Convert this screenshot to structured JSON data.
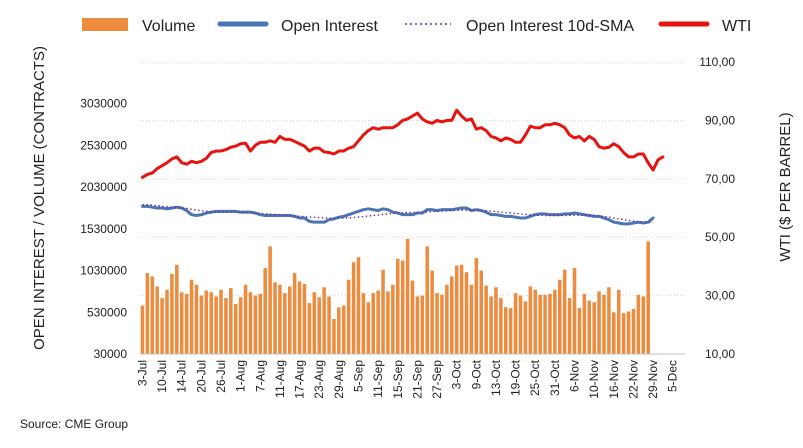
{
  "chart_data": {
    "type": "bar",
    "source": "Source: CME Group",
    "ylabel_left": "OPEN INTEREST / VOLUME (CONTRACTS)",
    "ylabel_right": "WTI ($ PER BARREL)",
    "y_left_range": [
      30000,
      3530000
    ],
    "y_right_range": [
      10,
      110
    ],
    "y_left_ticks": [
      30000,
      530000,
      1030000,
      1530000,
      2030000,
      2530000,
      3030000
    ],
    "y_left_tick_labels": [
      "30000",
      "530000",
      "1030000",
      "1530000",
      "2030000",
      "2530000",
      "3030000"
    ],
    "y_right_ticks": [
      10,
      30,
      50,
      70,
      90,
      110
    ],
    "y_right_tick_labels": [
      "10,00",
      "30,00",
      "50,00",
      "70,00",
      "90,00",
      "110,00"
    ],
    "x_tick_labels": [
      "3-Jul",
      "10-Jul",
      "14-Jul",
      "20-Jul",
      "26-Jul",
      "1-Aug",
      "7-Aug",
      "11-Aug",
      "17-Aug",
      "23-Aug",
      "29-Aug",
      "5-Sep",
      "11-Sep",
      "15-Sep",
      "21-Sep",
      "27-Sep",
      "3-Oct",
      "9-Oct",
      "13-Oct",
      "19-Oct",
      "25-Oct",
      "31-Oct",
      "6-Nov",
      "10-Nov",
      "16-Nov",
      "22-Nov",
      "29-Nov",
      "5-Dec"
    ],
    "x_tick_slots": [
      0,
      4,
      8,
      12,
      16,
      20,
      24,
      28,
      32,
      36,
      40,
      44,
      48,
      52,
      56,
      60,
      64,
      68,
      72,
      76,
      80,
      84,
      88,
      92,
      96,
      100,
      104,
      108
    ],
    "slot_count": 111,
    "series": [
      {
        "name": "Volume",
        "type": "bar",
        "color": "#ED8B3E",
        "values": [
          610000,
          1000000,
          960000,
          840000,
          700000,
          800000,
          990000,
          1100000,
          770000,
          750000,
          920000,
          860000,
          730000,
          790000,
          770000,
          720000,
          800000,
          700000,
          820000,
          630000,
          710000,
          860000,
          770000,
          730000,
          750000,
          1060000,
          1320000,
          890000,
          860000,
          760000,
          840000,
          1000000,
          900000,
          870000,
          640000,
          770000,
          710000,
          830000,
          720000,
          450000,
          590000,
          610000,
          920000,
          1130000,
          1190000,
          760000,
          650000,
          760000,
          790000,
          1040000,
          780000,
          860000,
          1170000,
          1150000,
          1410000,
          910000,
          720000,
          730000,
          1320000,
          1030000,
          760000,
          740000,
          860000,
          960000,
          1090000,
          1100000,
          1010000,
          860000,
          1180000,
          1030000,
          850000,
          720000,
          830000,
          700000,
          590000,
          580000,
          760000,
          730000,
          660000,
          840000,
          800000,
          740000,
          740000,
          750000,
          800000,
          920000,
          1040000,
          700000,
          1060000,
          580000,
          750000,
          670000,
          650000,
          780000,
          740000,
          830000,
          530000,
          800000,
          520000,
          540000,
          570000,
          740000,
          720000,
          1380000
        ]
      },
      {
        "name": "Open Interest",
        "type": "line",
        "color": "#4A74B4",
        "values": [
          1800000,
          1800000,
          1790000,
          1780000,
          1780000,
          1770000,
          1780000,
          1790000,
          1780000,
          1750000,
          1700000,
          1690000,
          1700000,
          1720000,
          1730000,
          1740000,
          1740000,
          1740000,
          1740000,
          1740000,
          1730000,
          1730000,
          1730000,
          1720000,
          1700000,
          1690000,
          1690000,
          1690000,
          1690000,
          1690000,
          1690000,
          1680000,
          1660000,
          1660000,
          1620000,
          1610000,
          1610000,
          1610000,
          1640000,
          1650000,
          1670000,
          1680000,
          1700000,
          1720000,
          1740000,
          1760000,
          1770000,
          1760000,
          1750000,
          1770000,
          1760000,
          1730000,
          1720000,
          1700000,
          1700000,
          1700000,
          1720000,
          1720000,
          1760000,
          1760000,
          1750000,
          1760000,
          1760000,
          1760000,
          1770000,
          1780000,
          1780000,
          1750000,
          1760000,
          1750000,
          1730000,
          1700000,
          1700000,
          1690000,
          1680000,
          1680000,
          1670000,
          1660000,
          1660000,
          1680000,
          1700000,
          1710000,
          1710000,
          1700000,
          1700000,
          1700000,
          1710000,
          1710000,
          1720000,
          1710000,
          1700000,
          1690000,
          1680000,
          1680000,
          1660000,
          1640000,
          1610000,
          1600000,
          1590000,
          1590000,
          1600000,
          1610000,
          1600000,
          1610000,
          1660000
        ]
      },
      {
        "name": "Open Interest 10d-SMA",
        "type": "line",
        "style": "dotted",
        "color": "#7030A0",
        "values": [
          1820000,
          1820000,
          1815000,
          1810000,
          1800000,
          1795000,
          1790000,
          1785000,
          1780000,
          1775000,
          1765000,
          1755000,
          1745000,
          1740000,
          1735000,
          1730000,
          1730000,
          1730000,
          1730000,
          1730000,
          1730000,
          1725000,
          1722000,
          1719000,
          1715000,
          1711000,
          1707000,
          1703000,
          1699000,
          1695000,
          1690000,
          1685000,
          1680000,
          1676000,
          1672000,
          1668000,
          1664000,
          1661000,
          1658000,
          1657000,
          1658000,
          1660000,
          1663000,
          1667000,
          1672000,
          1678000,
          1684000,
          1690000,
          1696000,
          1703000,
          1710000,
          1716000,
          1720000,
          1722000,
          1724000,
          1726000,
          1728000,
          1730000,
          1733000,
          1736000,
          1740000,
          1744000,
          1747000,
          1750000,
          1752000,
          1754000,
          1754000,
          1754000,
          1752000,
          1750000,
          1747000,
          1743000,
          1738000,
          1732000,
          1726000,
          1720000,
          1714000,
          1708000,
          1702000,
          1698000,
          1695000,
          1692000,
          1690000,
          1690000,
          1690000,
          1690000,
          1691000,
          1692000,
          1693000,
          1694000,
          1694000,
          1693000,
          1690000,
          1685000,
          1678000,
          1670000,
          1660000,
          1650000,
          1640000,
          1630000,
          1622000,
          1615000,
          1610000,
          1607000,
          1606000
        ]
      },
      {
        "name": "WTI",
        "type": "line",
        "axis": "right",
        "color": "#E8130E",
        "values": [
          70.5,
          71.5,
          72,
          73.5,
          74.5,
          75.5,
          76.8,
          77.5,
          75.5,
          75,
          76,
          75.5,
          76,
          77,
          79,
          79.5,
          79.5,
          80,
          80.8,
          81.2,
          82,
          82.2,
          79.5,
          81.5,
          82.5,
          82.5,
          83,
          82.5,
          84.5,
          83.5,
          83.5,
          82.8,
          82,
          81.2,
          79.5,
          80.5,
          80.5,
          79.2,
          79,
          78.5,
          79.5,
          79.5,
          80.5,
          81,
          83,
          85,
          86.5,
          87.5,
          87,
          87.5,
          87.5,
          87.5,
          88.5,
          90,
          90.5,
          91.5,
          92.5,
          90.5,
          89.5,
          89,
          90,
          89.5,
          90,
          90,
          93.5,
          91.5,
          90,
          90.5,
          87,
          87.5,
          86.5,
          84.5,
          84,
          83,
          84,
          83.5,
          82.5,
          82.5,
          85,
          88,
          87.5,
          87.5,
          88.5,
          88.5,
          89,
          88.5,
          87.5,
          85,
          84,
          84.5,
          83,
          84.5,
          83.5,
          81,
          80.5,
          80.8,
          82,
          81,
          79,
          77.5,
          77.5,
          78.5,
          78.5,
          75.5,
          73,
          76.5,
          77.5
        ]
      }
    ]
  }
}
